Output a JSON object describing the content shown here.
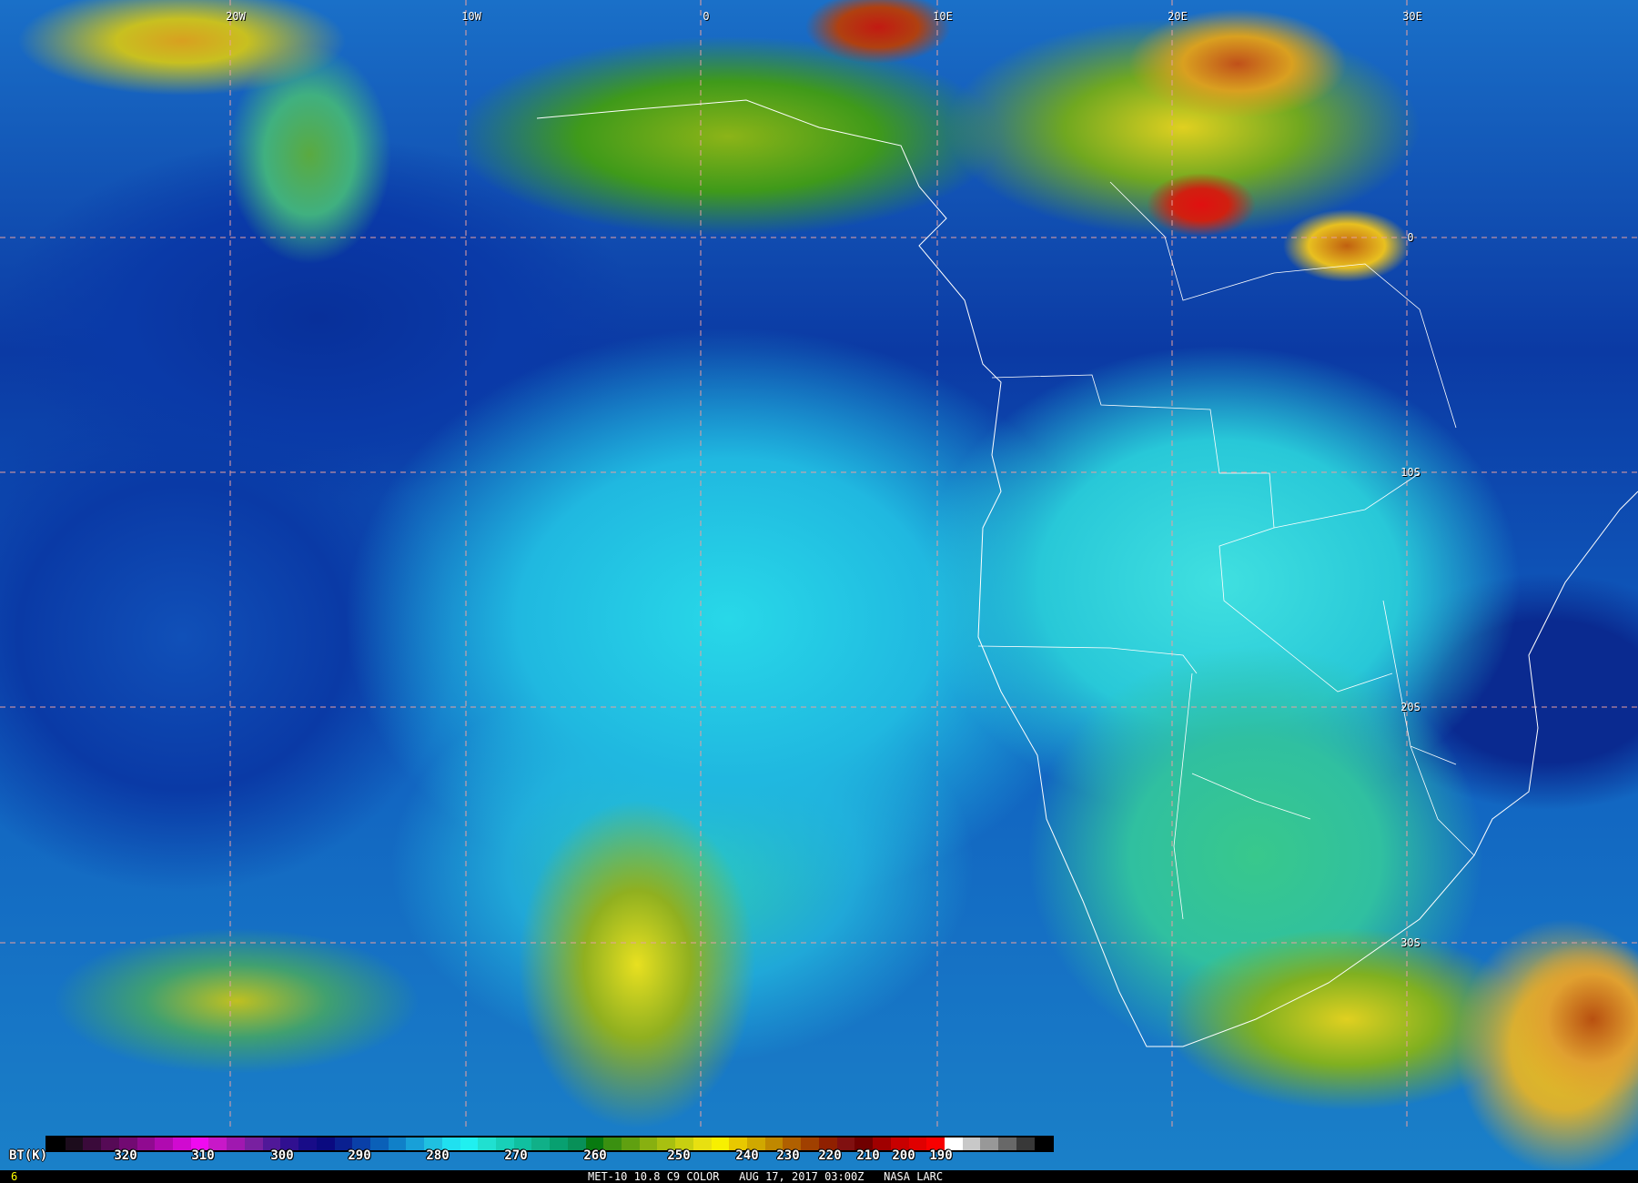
{
  "map": {
    "lon_labels": [
      "20W",
      "10W",
      "0",
      "10E",
      "20E",
      "30E"
    ],
    "lat_labels": [
      "0",
      "10S",
      "20S",
      "30S"
    ],
    "grid_color": "#e8a0a0",
    "border_color": "#ffffff"
  },
  "colorbar": {
    "unit_label": "BT(K)",
    "ticks": [
      "320",
      "310",
      "300",
      "290",
      "280",
      "270",
      "260",
      "250",
      "240",
      "230",
      "220",
      "210",
      "200",
      "190"
    ],
    "colors": [
      "#000000",
      "#1c0c1c",
      "#3a0a3a",
      "#560a56",
      "#720a72",
      "#900a90",
      "#b00ab0",
      "#d00ad0",
      "#f00af0",
      "#c818c8",
      "#a018b0",
      "#7820a0",
      "#501898",
      "#301090",
      "#180c88",
      "#0a0a80",
      "#0a2090",
      "#0a40a8",
      "#0a60b8",
      "#1080c8",
      "#18a0d8",
      "#20c0e0",
      "#20e0f0",
      "#20f0f0",
      "#20e0d0",
      "#18d0b8",
      "#10c0a0",
      "#10b088",
      "#08a070",
      "#089058",
      "#087a10",
      "#3a9010",
      "#60a010",
      "#88b010",
      "#a8c010",
      "#c8d010",
      "#e8e010",
      "#f8f000",
      "#e8c800",
      "#d0a800",
      "#c08800",
      "#b06000",
      "#a04000",
      "#902000",
      "#801010",
      "#700000",
      "#a00000",
      "#c80000",
      "#e00000",
      "#f80000",
      "#ffffff",
      "#c8c8c8",
      "#989898",
      "#686868",
      "#383838",
      "#000000"
    ]
  },
  "footer": {
    "frame": "6",
    "caption": "MET-10 10.8 C9 COLOR   AUG 17, 2017 03:00Z   NASA LARC"
  }
}
